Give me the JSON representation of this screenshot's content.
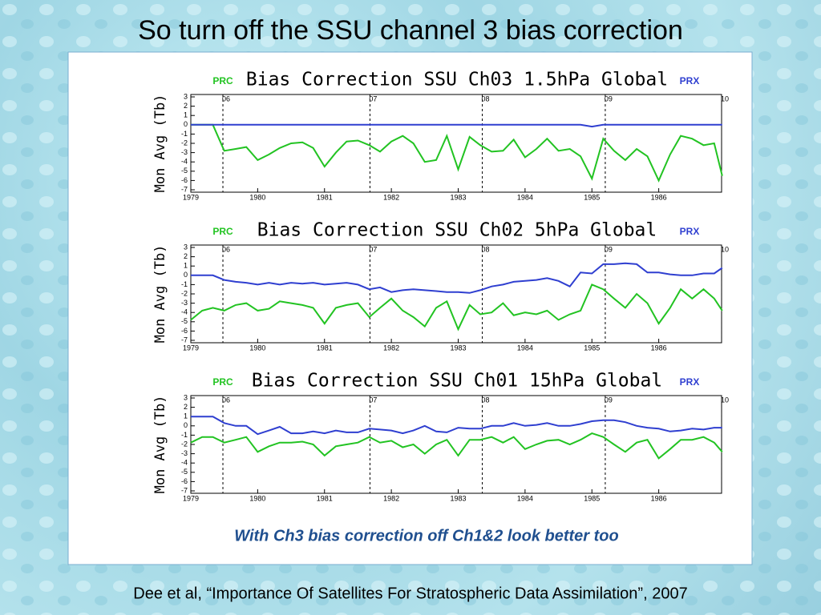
{
  "slide": {
    "title": "So turn off the SSU channel 3 bias correction",
    "caption": "With Ch3 bias correction off Ch1&2 look better too",
    "citation": "Dee et al, “Importance Of Satellites For Stratospheric Data Assimilation”, 2007"
  },
  "chart_data": [
    {
      "type": "line",
      "title": "Bias Correction SSU Ch03 1.5hPa Global",
      "ylabel": "Mon Avg (Tb)",
      "x": [
        1979,
        1979.17,
        1979.33,
        1979.5,
        1979.67,
        1979.83,
        1980,
        1980.17,
        1980.33,
        1980.5,
        1980.67,
        1980.83,
        1981,
        1981.17,
        1981.33,
        1981.5,
        1981.67,
        1981.83,
        1982,
        1982.17,
        1982.33,
        1982.5,
        1982.67,
        1982.83,
        1983,
        1983.17,
        1983.33,
        1983.5,
        1983.67,
        1983.83,
        1984,
        1984.17,
        1984.33,
        1984.5,
        1984.67,
        1984.83,
        1985,
        1985.17,
        1985.33,
        1985.5,
        1985.67,
        1985.83,
        1986,
        1986.17,
        1986.33,
        1986.5,
        1986.67,
        1986.83,
        1986.95
      ],
      "series": [
        {
          "name": "PRC",
          "color": "#22c322",
          "values": [
            0,
            0,
            0,
            -2.8,
            -2.6,
            -2.4,
            -3.8,
            -3.2,
            -2.5,
            -2.0,
            -1.9,
            -2.5,
            -4.5,
            -3.0,
            -1.8,
            -1.7,
            -2.2,
            -2.9,
            -1.8,
            -1.2,
            -2.0,
            -4.0,
            -3.8,
            -1.2,
            -4.8,
            -1.3,
            -2.2,
            -2.9,
            -2.8,
            -1.6,
            -3.5,
            -2.6,
            -1.5,
            -2.8,
            -2.6,
            -3.4,
            -5.8,
            -1.5,
            -2.8,
            -3.8,
            -2.6,
            -3.4,
            -6.0,
            -3.2,
            -1.2,
            -1.5,
            -2.2,
            -2.0,
            -5.5
          ]
        },
        {
          "name": "PRX",
          "color": "#2f3fd0",
          "values": [
            0,
            0,
            0,
            0,
            0,
            0,
            0,
            0,
            0,
            0,
            0,
            0,
            0,
            0,
            0,
            0,
            0,
            0,
            0,
            0,
            0,
            0,
            0,
            0,
            0,
            0,
            0,
            0,
            0,
            0,
            0,
            0,
            0,
            0,
            0,
            0,
            -0.2,
            0,
            0,
            0,
            0,
            0,
            0,
            0,
            0,
            0,
            0,
            0,
            0
          ]
        }
      ],
      "xlim": [
        1979,
        1987
      ],
      "ylim": [
        -7,
        3
      ],
      "xticks": [
        1979,
        1980,
        1981,
        1982,
        1983,
        1984,
        1985,
        1986
      ],
      "yticks": [
        -7,
        -6,
        -5,
        -4,
        -3,
        -2,
        -1,
        0,
        1,
        2,
        3
      ],
      "markers": [
        {
          "value": 1979.48,
          "label": "06"
        },
        {
          "value": 1981.68,
          "label": "07"
        },
        {
          "value": 1983.36,
          "label": "08"
        },
        {
          "value": 1985.2,
          "label": "09"
        },
        {
          "value": 1986.94,
          "label": "10"
        }
      ]
    },
    {
      "type": "line",
      "title": "Bias Correction SSU Ch02 5hPa Global",
      "ylabel": "Mon Avg (Tb)",
      "x": [
        1979,
        1979.17,
        1979.33,
        1979.5,
        1979.67,
        1979.83,
        1980,
        1980.17,
        1980.33,
        1980.5,
        1980.67,
        1980.83,
        1981,
        1981.17,
        1981.33,
        1981.5,
        1981.67,
        1981.83,
        1982,
        1982.17,
        1982.33,
        1982.5,
        1982.67,
        1982.83,
        1983,
        1983.17,
        1983.33,
        1983.5,
        1983.67,
        1983.83,
        1984,
        1984.17,
        1984.33,
        1984.5,
        1984.67,
        1984.83,
        1985,
        1985.17,
        1985.33,
        1985.5,
        1985.67,
        1985.83,
        1986,
        1986.17,
        1986.33,
        1986.5,
        1986.67,
        1986.83,
        1986.95
      ],
      "series": [
        {
          "name": "PRC",
          "color": "#22c322",
          "values": [
            -4.8,
            -3.8,
            -3.5,
            -3.8,
            -3.2,
            -3.0,
            -3.8,
            -3.6,
            -2.8,
            -3.0,
            -3.2,
            -3.5,
            -5.2,
            -3.5,
            -3.2,
            -3.0,
            -4.5,
            -3.5,
            -2.5,
            -3.8,
            -4.5,
            -5.5,
            -3.5,
            -2.8,
            -5.8,
            -3.2,
            -4.2,
            -4.0,
            -3.0,
            -4.3,
            -4.0,
            -4.2,
            -3.8,
            -4.8,
            -4.2,
            -3.8,
            -1.0,
            -1.5,
            -2.5,
            -3.5,
            -2.0,
            -3.0,
            -5.2,
            -3.5,
            -1.5,
            -2.5,
            -1.5,
            -2.5,
            -3.8
          ]
        },
        {
          "name": "PRX",
          "color": "#2f3fd0",
          "values": [
            0,
            0,
            0,
            -0.5,
            -0.7,
            -0.8,
            -1.0,
            -0.8,
            -1.0,
            -0.8,
            -0.9,
            -0.8,
            -1.0,
            -0.9,
            -0.8,
            -1.0,
            -1.5,
            -1.3,
            -1.8,
            -1.6,
            -1.5,
            -1.6,
            -1.7,
            -1.8,
            -1.8,
            -1.9,
            -1.6,
            -1.2,
            -1.0,
            -0.7,
            -0.6,
            -0.5,
            -0.3,
            -0.6,
            -1.2,
            0.3,
            0.2,
            1.2,
            1.2,
            1.3,
            1.2,
            0.3,
            0.3,
            0.1,
            0.0,
            0.0,
            0.2,
            0.2,
            0.8
          ]
        }
      ],
      "xlim": [
        1979,
        1987
      ],
      "ylim": [
        -7,
        3
      ],
      "xticks": [
        1979,
        1980,
        1981,
        1982,
        1983,
        1984,
        1985,
        1986
      ],
      "yticks": [
        -7,
        -6,
        -5,
        -4,
        -3,
        -2,
        -1,
        0,
        1,
        2,
        3
      ],
      "markers": [
        {
          "value": 1979.48,
          "label": "06"
        },
        {
          "value": 1981.68,
          "label": "07"
        },
        {
          "value": 1983.36,
          "label": "08"
        },
        {
          "value": 1985.2,
          "label": "09"
        },
        {
          "value": 1986.94,
          "label": "10"
        }
      ]
    },
    {
      "type": "line",
      "title": "Bias Correction SSU Ch01 15hPa Global",
      "ylabel": "Mon Avg (Tb)",
      "x": [
        1979,
        1979.17,
        1979.33,
        1979.5,
        1979.67,
        1979.83,
        1980,
        1980.17,
        1980.33,
        1980.5,
        1980.67,
        1980.83,
        1981,
        1981.17,
        1981.33,
        1981.5,
        1981.67,
        1981.83,
        1982,
        1982.17,
        1982.33,
        1982.5,
        1982.67,
        1982.83,
        1983,
        1983.17,
        1983.33,
        1983.5,
        1983.67,
        1983.83,
        1984,
        1984.17,
        1984.33,
        1984.5,
        1984.67,
        1984.83,
        1985,
        1985.17,
        1985.33,
        1985.5,
        1985.67,
        1985.83,
        1986,
        1986.17,
        1986.33,
        1986.5,
        1986.67,
        1986.83,
        1986.95
      ],
      "series": [
        {
          "name": "PRC",
          "color": "#22c322",
          "values": [
            -1.8,
            -1.2,
            -1.2,
            -1.8,
            -1.5,
            -1.2,
            -2.8,
            -2.2,
            -1.8,
            -1.8,
            -1.7,
            -2.0,
            -3.2,
            -2.2,
            -2.0,
            -1.8,
            -1.2,
            -1.8,
            -1.6,
            -2.3,
            -2.0,
            -3.0,
            -2.0,
            -1.5,
            -3.2,
            -1.5,
            -1.5,
            -1.2,
            -1.8,
            -1.2,
            -2.5,
            -2.0,
            -1.6,
            -1.5,
            -2.0,
            -1.5,
            -0.8,
            -1.2,
            -2.0,
            -2.8,
            -1.8,
            -1.5,
            -3.5,
            -2.5,
            -1.5,
            -1.5,
            -1.2,
            -1.8,
            -2.8
          ]
        },
        {
          "name": "PRX",
          "color": "#2f3fd0",
          "values": [
            1.0,
            1.0,
            1.0,
            0.3,
            0.0,
            0.0,
            -0.9,
            -0.5,
            -0.1,
            -0.8,
            -0.8,
            -0.6,
            -0.8,
            -0.5,
            -0.7,
            -0.7,
            -0.3,
            -0.4,
            -0.5,
            -0.8,
            -0.5,
            0.0,
            -0.6,
            -0.7,
            -0.2,
            -0.3,
            -0.3,
            0.0,
            0.0,
            0.3,
            0.0,
            0.1,
            0.3,
            0.0,
            0.0,
            0.2,
            0.5,
            0.6,
            0.6,
            0.4,
            0.0,
            -0.2,
            -0.3,
            -0.6,
            -0.5,
            -0.3,
            -0.4,
            -0.2,
            -0.2
          ]
        }
      ],
      "xlim": [
        1979,
        1987
      ],
      "ylim": [
        -7,
        3
      ],
      "xticks": [
        1979,
        1980,
        1981,
        1982,
        1983,
        1984,
        1985,
        1986
      ],
      "yticks": [
        -7,
        -6,
        -5,
        -4,
        -3,
        -2,
        -1,
        0,
        1,
        2,
        3
      ],
      "markers": [
        {
          "value": 1979.48,
          "label": "06"
        },
        {
          "value": 1981.68,
          "label": "07"
        },
        {
          "value": 1983.36,
          "label": "08"
        },
        {
          "value": 1985.2,
          "label": "09"
        },
        {
          "value": 1986.94,
          "label": "10"
        }
      ]
    }
  ]
}
